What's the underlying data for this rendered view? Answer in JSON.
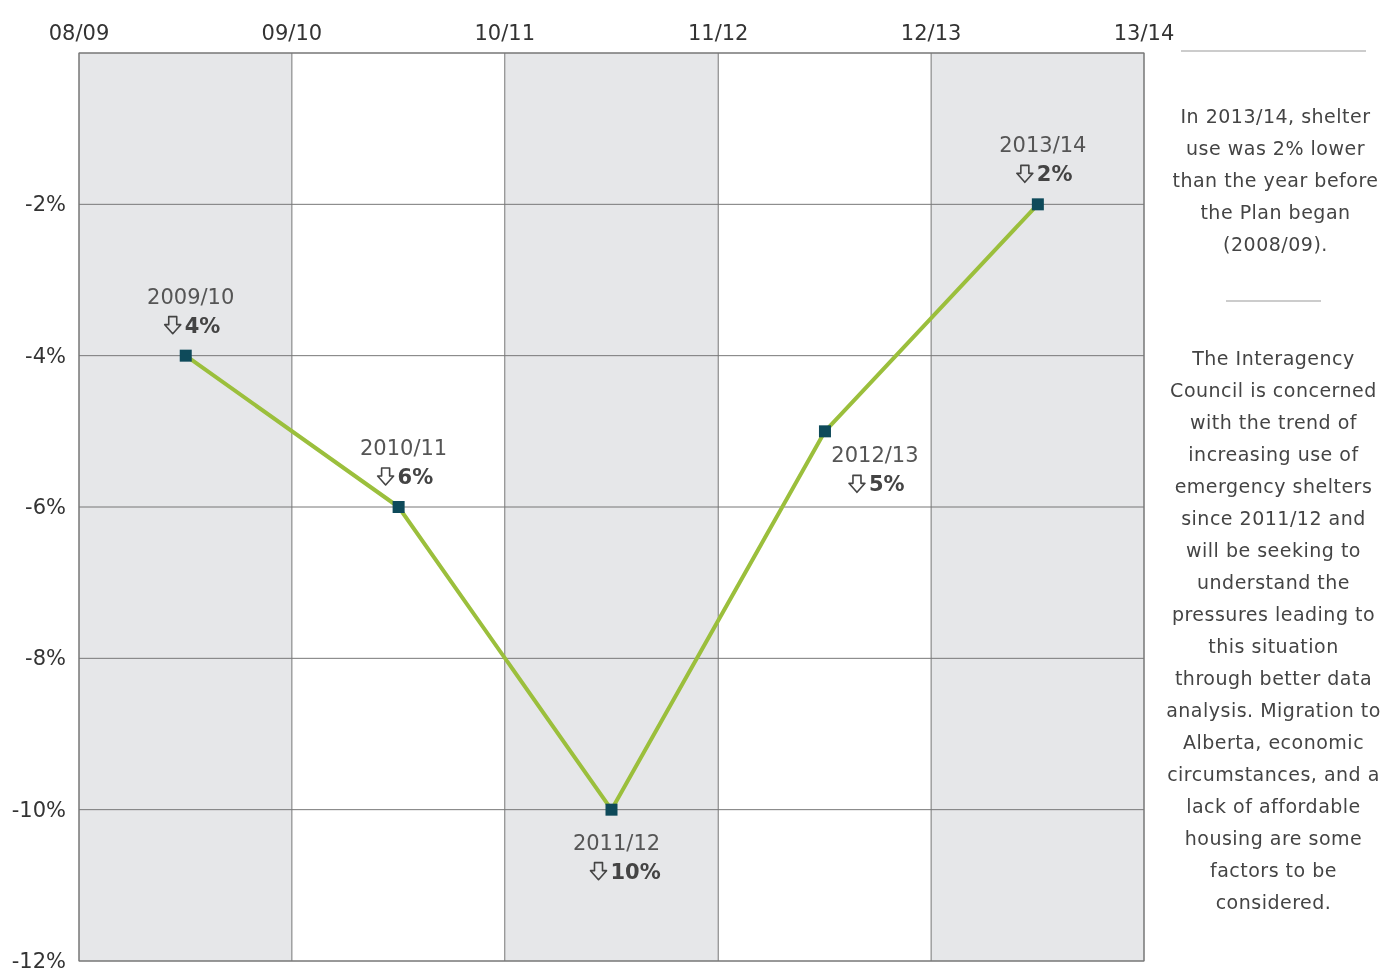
{
  "chart_data": {
    "type": "line",
    "x": [
      "2009-10-01",
      "2010-10-01",
      "2011-10-01",
      "2012-10-01",
      "2013-10-01"
    ],
    "values": [
      -4,
      -6,
      -10,
      -5,
      -2
    ],
    "color": "#9bbf3c",
    "marker": "square",
    "xlim": [
      "2009-04-01",
      "2014-04-01"
    ],
    "xticks": [
      {
        "value": "2009-04-01",
        "label": "08/09"
      },
      {
        "value": "2010-04-01",
        "label": "09/10"
      },
      {
        "value": "2011-04-01",
        "label": "10/11"
      },
      {
        "value": "2012-04-01",
        "label": "11/12"
      },
      {
        "value": "2013-04-01",
        "label": "12/13"
      },
      {
        "value": "2014-04-01",
        "label": "13/14"
      }
    ],
    "ylim": [
      -12,
      0
    ],
    "yticks": [
      {
        "value": 0,
        "label": null
      },
      {
        "value": -2,
        "label": "-2%"
      },
      {
        "value": -4,
        "label": "-4%"
      },
      {
        "value": -6,
        "label": "-6%"
      },
      {
        "value": -8,
        "label": "-8%"
      },
      {
        "value": -10,
        "label": "-10%"
      },
      {
        "value": -12,
        "label": "-12%"
      }
    ],
    "grid": true,
    "bands": [
      {
        "axis": "x",
        "from": "2009-04-01",
        "to": "2010-04-01",
        "color": "#e6e7e9"
      },
      {
        "axis": "x",
        "from": "2011-04-01",
        "to": "2012-04-01",
        "color": "#e6e7e9"
      },
      {
        "axis": "x",
        "from": "2013-04-01",
        "to": "2014-04-01",
        "color": "#e6e7e9"
      }
    ],
    "annotations": [
      {
        "text": "2009/10",
        "x": "2009-10-01",
        "y": -4
      },
      {
        "text": "2010/11",
        "x": "2010-10-01",
        "y": -6
      },
      {
        "text": "2011/12",
        "x": "2011-10-01",
        "y": -10
      },
      {
        "text": "2012/13",
        "x": "2012-10-01",
        "y": -5
      },
      {
        "text": "2013/14",
        "x": "2013-10-01",
        "y": -2
      },
      {
        "text": "4%",
        "x": "2009-10-01",
        "y": -4
      },
      {
        "text": "6%",
        "x": "2010-10-01",
        "y": -6
      },
      {
        "text": "10%",
        "x": "2011-10-01",
        "y": -10
      },
      {
        "text": "5%",
        "x": "2012-10-01",
        "y": -5
      },
      {
        "text": "2%",
        "x": "2013-10-01",
        "y": -2
      },
      "In 2013/14, shelter use was 2% lower than the year before the Plan began (2008/09).",
      "The Interagency Council is concerned with the trend of increasing use of emergency shelters since 2011/12 and will be seeking to understand the pressures leading to this situation through better data analysis. Migration to Alberta, economic circumstances, and a lack of affordable housing are some factors to be considered."
    ]
  }
}
